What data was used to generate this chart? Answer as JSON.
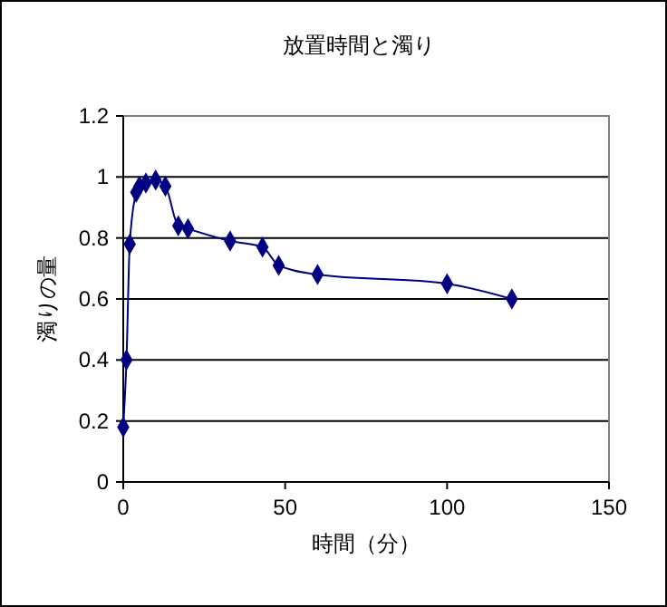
{
  "chart_data": {
    "type": "line",
    "title": "放置時間と濁り",
    "xlabel": "時間（分）",
    "ylabel": "濁りの量",
    "x": [
      0,
      1,
      2,
      4,
      5,
      7,
      10,
      13,
      17,
      20,
      33,
      43,
      48,
      60,
      100,
      120
    ],
    "series": [
      {
        "color": "#000080",
        "values": [
          0.18,
          0.4,
          0.78,
          0.95,
          0.97,
          0.98,
          0.99,
          0.97,
          0.84,
          0.83,
          0.79,
          0.77,
          0.71,
          0.68,
          0.65,
          0.6
        ]
      }
    ],
    "xlim": [
      0,
      150
    ],
    "xticks": [
      0,
      50,
      100,
      150
    ],
    "ylim": [
      0,
      1.2
    ],
    "yticks": [
      0,
      0.2,
      0.4,
      0.6,
      0.8,
      1,
      1.2
    ],
    "grid": "y",
    "marker": "diamond"
  }
}
